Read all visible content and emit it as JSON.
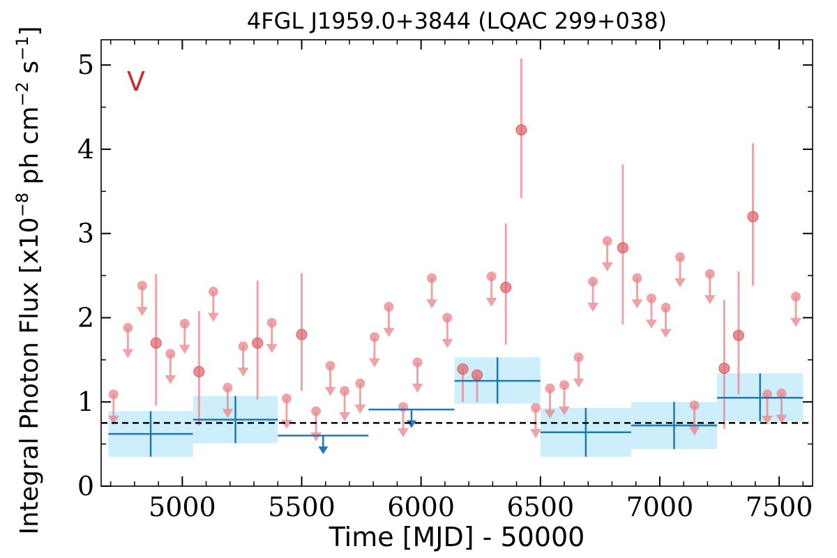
{
  "chart_data": {
    "type": "scatter",
    "title": "4FGL J1959.0+3844 (LQAC 299+038)",
    "xlabel": "Time [MJD] - 50000",
    "ylabel": "Integral Photon Flux [x10",
    "ylabel_exp1": "−8",
    "ylabel_mid": " ph cm",
    "ylabel_exp2": "−2",
    "ylabel_mid2": " s",
    "ylabel_exp3": "−1",
    "ylabel_end": "]",
    "xlim": [
      4660,
      7640
    ],
    "ylim": [
      0,
      5.3
    ],
    "x_ticks": [
      5000,
      5500,
      6000,
      6500,
      7000,
      7500
    ],
    "y_ticks": [
      0,
      1,
      2,
      3,
      4,
      5
    ],
    "flag_text": "V",
    "flag_color": "#cc2b2b",
    "mean_flux": 0.75,
    "short_bins": {
      "color": "#e8868a",
      "detections": [
        {
          "x": 4890,
          "y": 1.7,
          "lo": 0.96,
          "hi": 2.52
        },
        {
          "x": 5070,
          "y": 1.36,
          "lo": 0.72,
          "hi": 2.08
        },
        {
          "x": 5315,
          "y": 1.7,
          "lo": 1.03,
          "hi": 2.44
        },
        {
          "x": 5500,
          "y": 1.8,
          "lo": 1.13,
          "hi": 2.53
        },
        {
          "x": 6175,
          "y": 1.39,
          "lo": 1.0,
          "hi": 1.4
        },
        {
          "x": 6235,
          "y": 1.32,
          "lo": 1.0,
          "hi": 1.33
        },
        {
          "x": 6355,
          "y": 2.36,
          "lo": 1.68,
          "hi": 3.12
        },
        {
          "x": 6420,
          "y": 4.23,
          "lo": 3.42,
          "hi": 5.08
        },
        {
          "x": 6845,
          "y": 2.83,
          "lo": 1.92,
          "hi": 3.82
        },
        {
          "x": 7270,
          "y": 1.4,
          "lo": 0.68,
          "hi": 2.21
        },
        {
          "x": 7330,
          "y": 1.79,
          "lo": 1.09,
          "hi": 2.55
        },
        {
          "x": 7390,
          "y": 3.2,
          "lo": 2.38,
          "hi": 4.07
        }
      ],
      "upper_limits": [
        {
          "x": 4712,
          "y": 1.09
        },
        {
          "x": 4772,
          "y": 1.88
        },
        {
          "x": 4832,
          "y": 2.38
        },
        {
          "x": 4950,
          "y": 1.57
        },
        {
          "x": 5010,
          "y": 1.93
        },
        {
          "x": 5130,
          "y": 2.31
        },
        {
          "x": 5190,
          "y": 1.17
        },
        {
          "x": 5255,
          "y": 1.66
        },
        {
          "x": 5375,
          "y": 1.94
        },
        {
          "x": 5437,
          "y": 1.04
        },
        {
          "x": 5560,
          "y": 0.89
        },
        {
          "x": 5620,
          "y": 1.43
        },
        {
          "x": 5680,
          "y": 1.13
        },
        {
          "x": 5745,
          "y": 1.22
        },
        {
          "x": 5805,
          "y": 1.77
        },
        {
          "x": 5865,
          "y": 2.13
        },
        {
          "x": 5925,
          "y": 0.94
        },
        {
          "x": 5985,
          "y": 1.47
        },
        {
          "x": 6045,
          "y": 2.47
        },
        {
          "x": 6110,
          "y": 2.0
        },
        {
          "x": 6295,
          "y": 2.49
        },
        {
          "x": 6480,
          "y": 0.93
        },
        {
          "x": 6540,
          "y": 1.16
        },
        {
          "x": 6600,
          "y": 1.2
        },
        {
          "x": 6660,
          "y": 1.53
        },
        {
          "x": 6720,
          "y": 2.43
        },
        {
          "x": 6780,
          "y": 2.91
        },
        {
          "x": 6905,
          "y": 2.47
        },
        {
          "x": 6965,
          "y": 2.23
        },
        {
          "x": 7025,
          "y": 2.12
        },
        {
          "x": 7085,
          "y": 2.72
        },
        {
          "x": 7145,
          "y": 0.96
        },
        {
          "x": 7210,
          "y": 2.52
        },
        {
          "x": 7450,
          "y": 1.09
        },
        {
          "x": 7510,
          "y": 1.1
        },
        {
          "x": 7570,
          "y": 2.25
        }
      ]
    },
    "long_bins": {
      "color": "#1f77b4",
      "band_color": "#cdeefb",
      "detections": [
        {
          "x0": 4690,
          "x1": 5045,
          "y": 0.62,
          "lo": 0.35,
          "hi": 0.89
        },
        {
          "x0": 5045,
          "x1": 5400,
          "y": 0.79,
          "lo": 0.51,
          "hi": 1.07
        },
        {
          "x0": 6140,
          "x1": 6500,
          "y": 1.25,
          "lo": 0.98,
          "hi": 1.53
        },
        {
          "x0": 6500,
          "x1": 6880,
          "y": 0.64,
          "lo": 0.35,
          "hi": 0.93
        },
        {
          "x0": 6880,
          "x1": 7240,
          "y": 0.72,
          "lo": 0.44,
          "hi": 1.0
        },
        {
          "x0": 7240,
          "x1": 7600,
          "y": 1.05,
          "lo": 0.77,
          "hi": 1.34
        }
      ],
      "upper_limits": [
        {
          "x0": 5400,
          "x1": 5780,
          "y": 0.6
        },
        {
          "x0": 5780,
          "x1": 6140,
          "y": 0.91
        }
      ]
    }
  }
}
